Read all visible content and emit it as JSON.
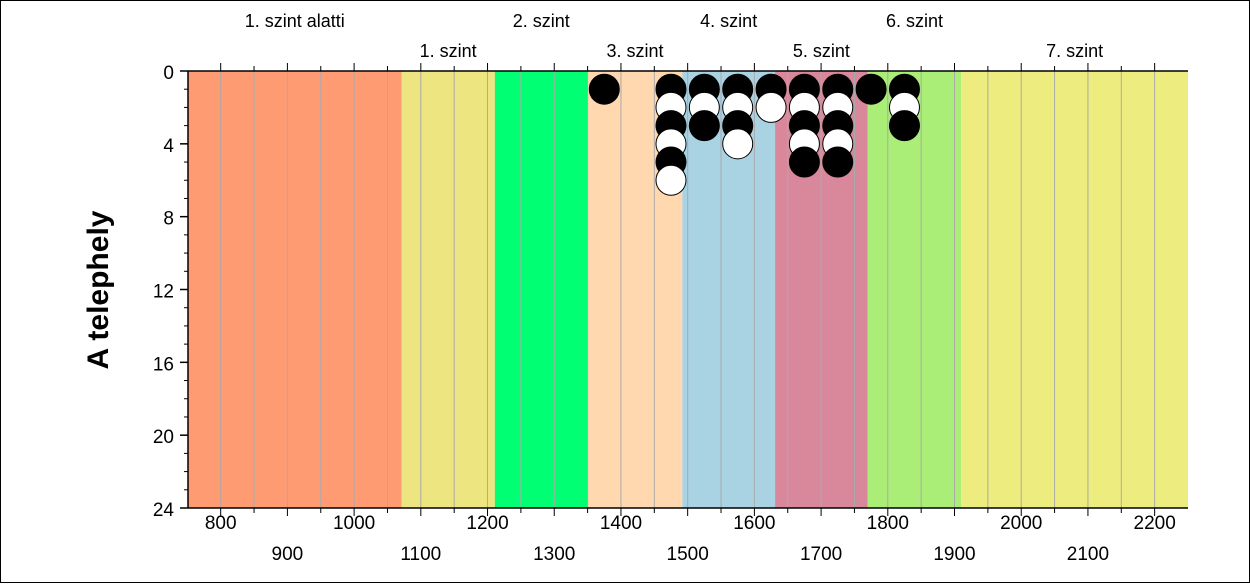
{
  "chart_data": {
    "type": "scatter",
    "title": "",
    "xlabel": "",
    "ylabel": "A telephely",
    "xlim": [
      751,
      2250
    ],
    "ylim": [
      0,
      24
    ],
    "y_inverted": true,
    "x_ticks_top_row": [
      "800",
      "1000",
      "1200",
      "1400",
      "1600",
      "1800",
      "2000",
      "2200"
    ],
    "x_ticks_bottom_row": [
      "900",
      "1100",
      "1300",
      "1500",
      "1700",
      "1900",
      "2100"
    ],
    "y_ticks": [
      "0",
      "4",
      "8",
      "12",
      "16",
      "20",
      "24"
    ],
    "bands": [
      {
        "name": "1. szint alatti",
        "from": 751,
        "to": 1071,
        "color": "#ff9b73"
      },
      {
        "name": "1. szint",
        "from": 1071,
        "to": 1211,
        "color": "#ede57f"
      },
      {
        "name": "2. szint",
        "from": 1211,
        "to": 1350,
        "color": "#00ff73"
      },
      {
        "name": "3. szint",
        "from": 1350,
        "to": 1492,
        "color": "#ffd8b0"
      },
      {
        "name": "4. szint",
        "from": 1492,
        "to": 1631,
        "color": "#a9d3e3"
      },
      {
        "name": "5. szint",
        "from": 1631,
        "to": 1770,
        "color": "#d9879a"
      },
      {
        "name": "6. szint",
        "from": 1770,
        "to": 1910,
        "color": "#aaee77"
      },
      {
        "name": "7. szint",
        "from": 1910,
        "to": 2250,
        "color": "#eded7f"
      }
    ],
    "series": [
      {
        "marker": "filled",
        "color": "#000000",
        "points": [
          [
            1375,
            1
          ],
          [
            1475,
            1
          ],
          [
            1475,
            3
          ],
          [
            1475,
            5
          ],
          [
            1525,
            1
          ],
          [
            1525,
            3
          ],
          [
            1575,
            1
          ],
          [
            1575,
            3
          ],
          [
            1625,
            1
          ],
          [
            1675,
            1
          ],
          [
            1675,
            3
          ],
          [
            1675,
            5
          ],
          [
            1725,
            1
          ],
          [
            1725,
            3
          ],
          [
            1725,
            5
          ],
          [
            1775,
            1
          ],
          [
            1825,
            1
          ],
          [
            1825,
            3
          ]
        ]
      },
      {
        "marker": "open",
        "color": "#ffffff",
        "points": [
          [
            1475,
            2
          ],
          [
            1475,
            4
          ],
          [
            1475,
            6
          ],
          [
            1525,
            2
          ],
          [
            1575,
            2
          ],
          [
            1575,
            4
          ],
          [
            1625,
            2
          ],
          [
            1675,
            2
          ],
          [
            1675,
            4
          ],
          [
            1725,
            2
          ],
          [
            1725,
            4
          ],
          [
            1825,
            2
          ]
        ]
      }
    ],
    "grid": {
      "x_minor_step": 50,
      "color": "#aaaaaa"
    }
  }
}
